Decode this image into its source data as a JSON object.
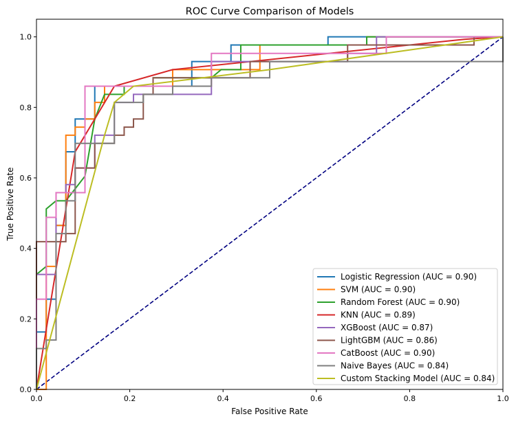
{
  "chart_data": {
    "type": "line",
    "title": "ROC Curve Comparison of Models",
    "xlabel": "False Positive Rate",
    "ylabel": "True Positive Rate",
    "xlim": [
      0,
      1
    ],
    "ylim": [
      0,
      1.05
    ],
    "xticks": [
      "0.0",
      "0.2",
      "0.4",
      "0.6",
      "0.8",
      "1.0"
    ],
    "yticks": [
      "0.0",
      "0.2",
      "0.4",
      "0.6",
      "0.8",
      "1.0"
    ],
    "grid": false,
    "legend_position": "bottom-right",
    "reference_line": {
      "x": [
        0,
        1
      ],
      "y": [
        0,
        1
      ],
      "color": "#000080",
      "style": "dashed"
    },
    "series": [
      {
        "name": "Logistic Regression (AUC = 0.90)",
        "color": "#1f77b4",
        "points": [
          [
            0,
            0
          ],
          [
            0,
            0.163
          ],
          [
            0.021,
            0.163
          ],
          [
            0.021,
            0.256
          ],
          [
            0.042,
            0.256
          ],
          [
            0.042,
            0.465
          ],
          [
            0.063,
            0.465
          ],
          [
            0.063,
            0.674
          ],
          [
            0.083,
            0.674
          ],
          [
            0.083,
            0.767
          ],
          [
            0.125,
            0.767
          ],
          [
            0.125,
            0.86
          ],
          [
            0.333,
            0.86
          ],
          [
            0.333,
            0.93
          ],
          [
            0.417,
            0.93
          ],
          [
            0.417,
            0.977
          ],
          [
            0.625,
            0.977
          ],
          [
            0.625,
            1
          ],
          [
            1,
            1
          ]
        ]
      },
      {
        "name": "SVM (AUC = 0.90)",
        "color": "#ff7f0e",
        "points": [
          [
            0,
            0
          ],
          [
            0.021,
            0
          ],
          [
            0.021,
            0.349
          ],
          [
            0.042,
            0.349
          ],
          [
            0.042,
            0.465
          ],
          [
            0.063,
            0.465
          ],
          [
            0.063,
            0.721
          ],
          [
            0.083,
            0.721
          ],
          [
            0.083,
            0.744
          ],
          [
            0.104,
            0.744
          ],
          [
            0.104,
            0.767
          ],
          [
            0.125,
            0.767
          ],
          [
            0.125,
            0.814
          ],
          [
            0.146,
            0.814
          ],
          [
            0.146,
            0.86
          ],
          [
            0.292,
            0.86
          ],
          [
            0.292,
            0.907
          ],
          [
            0.479,
            0.907
          ],
          [
            0.479,
            0.977
          ],
          [
            0.708,
            0.977
          ],
          [
            0.708,
            1
          ],
          [
            1,
            1
          ]
        ]
      },
      {
        "name": "Random Forest (AUC = 0.90)",
        "color": "#2ca02c",
        "points": [
          [
            0,
            0
          ],
          [
            0,
            0.326
          ],
          [
            0.021,
            0.349
          ],
          [
            0.021,
            0.512
          ],
          [
            0.042,
            0.535
          ],
          [
            0.063,
            0.535
          ],
          [
            0.104,
            0.605
          ],
          [
            0.125,
            0.767
          ],
          [
            0.146,
            0.837
          ],
          [
            0.188,
            0.837
          ],
          [
            0.188,
            0.86
          ],
          [
            0.25,
            0.86
          ],
          [
            0.25,
            0.884
          ],
          [
            0.375,
            0.884
          ],
          [
            0.396,
            0.907
          ],
          [
            0.438,
            0.907
          ],
          [
            0.438,
            0.977
          ],
          [
            0.708,
            0.977
          ],
          [
            0.708,
            1
          ],
          [
            1,
            1
          ]
        ]
      },
      {
        "name": "KNN (AUC = 0.89)",
        "color": "#d62728",
        "points": [
          [
            0,
            0
          ],
          [
            0.083,
            0.674
          ],
          [
            0.167,
            0.86
          ],
          [
            0.292,
            0.907
          ],
          [
            0.917,
            0.993
          ],
          [
            1,
            1
          ]
        ]
      },
      {
        "name": "XGBoost (AUC = 0.87)",
        "color": "#9467bd",
        "points": [
          [
            0,
            0
          ],
          [
            0,
            0.326
          ],
          [
            0.042,
            0.326
          ],
          [
            0.042,
            0.558
          ],
          [
            0.063,
            0.558
          ],
          [
            0.063,
            0.581
          ],
          [
            0.083,
            0.581
          ],
          [
            0.083,
            0.628
          ],
          [
            0.125,
            0.628
          ],
          [
            0.125,
            0.721
          ],
          [
            0.167,
            0.721
          ],
          [
            0.167,
            0.814
          ],
          [
            0.208,
            0.814
          ],
          [
            0.208,
            0.837
          ],
          [
            0.375,
            0.837
          ],
          [
            0.375,
            0.93
          ],
          [
            0.667,
            0.93
          ],
          [
            0.667,
            0.953
          ],
          [
            0.729,
            0.953
          ],
          [
            0.729,
            1
          ],
          [
            1,
            1
          ]
        ]
      },
      {
        "name": "LightGBM (AUC = 0.86)",
        "color": "#8c564b",
        "points": [
          [
            0,
            0
          ],
          [
            0,
            0.419
          ],
          [
            0.063,
            0.419
          ],
          [
            0.063,
            0.442
          ],
          [
            0.083,
            0.442
          ],
          [
            0.083,
            0.628
          ],
          [
            0.125,
            0.628
          ],
          [
            0.125,
            0.698
          ],
          [
            0.167,
            0.698
          ],
          [
            0.167,
            0.721
          ],
          [
            0.188,
            0.721
          ],
          [
            0.188,
            0.744
          ],
          [
            0.208,
            0.744
          ],
          [
            0.208,
            0.767
          ],
          [
            0.229,
            0.767
          ],
          [
            0.229,
            0.837
          ],
          [
            0.25,
            0.837
          ],
          [
            0.25,
            0.884
          ],
          [
            0.458,
            0.884
          ],
          [
            0.458,
            0.93
          ],
          [
            0.667,
            0.93
          ],
          [
            0.667,
            0.977
          ],
          [
            0.938,
            0.977
          ],
          [
            0.938,
            1
          ],
          [
            1,
            1
          ]
        ]
      },
      {
        "name": "CatBoost (AUC = 0.90)",
        "color": "#e377c2",
        "points": [
          [
            0,
            0
          ],
          [
            0,
            0.256
          ],
          [
            0.021,
            0.256
          ],
          [
            0.021,
            0.488
          ],
          [
            0.042,
            0.488
          ],
          [
            0.042,
            0.558
          ],
          [
            0.104,
            0.558
          ],
          [
            0.104,
            0.86
          ],
          [
            0.375,
            0.86
          ],
          [
            0.375,
            0.953
          ],
          [
            0.75,
            0.953
          ],
          [
            0.75,
            1
          ],
          [
            1,
            1
          ]
        ]
      },
      {
        "name": "Naive Bayes (AUC = 0.84)",
        "color": "#7f7f7f",
        "points": [
          [
            0,
            0
          ],
          [
            0,
            0.116
          ],
          [
            0.021,
            0.116
          ],
          [
            0.021,
            0.14
          ],
          [
            0.042,
            0.14
          ],
          [
            0.042,
            0.442
          ],
          [
            0.063,
            0.442
          ],
          [
            0.063,
            0.535
          ],
          [
            0.083,
            0.535
          ],
          [
            0.083,
            0.698
          ],
          [
            0.167,
            0.698
          ],
          [
            0.167,
            0.814
          ],
          [
            0.229,
            0.814
          ],
          [
            0.229,
            0.837
          ],
          [
            0.292,
            0.837
          ],
          [
            0.292,
            0.86
          ],
          [
            0.375,
            0.86
          ],
          [
            0.375,
            0.884
          ],
          [
            0.5,
            0.884
          ],
          [
            0.5,
            0.93
          ],
          [
            1,
            0.93
          ],
          [
            1,
            1
          ]
        ]
      },
      {
        "name": "Custom Stacking Model (AUC = 0.84)",
        "color": "#bcbd22",
        "points": [
          [
            0,
            0
          ],
          [
            0.146,
            0.721
          ],
          [
            0.167,
            0.814
          ],
          [
            0.208,
            0.86
          ],
          [
            0.5,
            0.907
          ],
          [
            1,
            1
          ]
        ]
      }
    ]
  }
}
